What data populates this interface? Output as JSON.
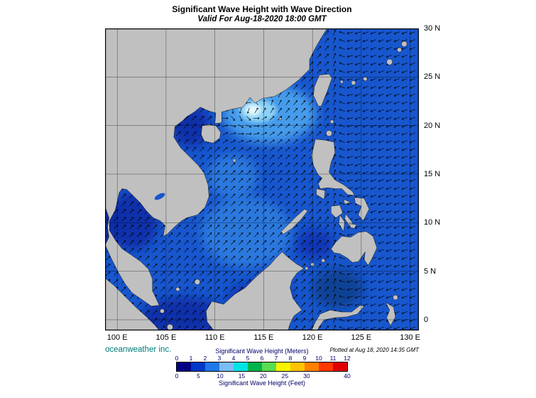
{
  "header": {
    "title": "Significant Wave Height with Wave Direction",
    "subtitle": "Valid For Aug-18-2020 18:00 GMT"
  },
  "footer": {
    "brand": "oceanweather inc.",
    "plotted": "Plotted at Aug 18, 2020 14:35 GMT"
  },
  "map": {
    "bounds": {
      "lon_min": 98.75,
      "lon_max": 130.9,
      "lat_min": -1.1,
      "lat_max": 30
    },
    "ocean_color": "#1756cd",
    "land_color": "#c0c0c0",
    "lon_ticks": [
      {
        "value": 100,
        "label": "100 E"
      },
      {
        "value": 105,
        "label": "105 E"
      },
      {
        "value": 110,
        "label": "110 E"
      },
      {
        "value": 115,
        "label": "115 E"
      },
      {
        "value": 120,
        "label": "120 E"
      },
      {
        "value": 125,
        "label": "125 E"
      },
      {
        "value": 130,
        "label": "130 E"
      }
    ],
    "lat_ticks": [
      {
        "value": 0,
        "label": "0"
      },
      {
        "value": 5,
        "label": "5 N"
      },
      {
        "value": 10,
        "label": "10 N"
      },
      {
        "value": 15,
        "label": "15 N"
      },
      {
        "value": 20,
        "label": "20 N"
      },
      {
        "value": 25,
        "label": "25 N"
      },
      {
        "value": 30,
        "label": "30 N"
      }
    ],
    "wave_field": {
      "vortex": {
        "lon": 113.9,
        "lat": 21.6
      },
      "scs_dir_deg": 45,
      "pacific_dir_deg": 200,
      "arrow_spacing_deg": 0.8
    },
    "regions": [
      {
        "name": "south-scs-moderate",
        "lon": 113.2,
        "lat": 9.0,
        "rx": 4.6,
        "ry": 3.6,
        "color": "#2e7ce0",
        "blur": "soft"
      },
      {
        "name": "central-scs-moderate",
        "lon": 111.8,
        "lat": 14.8,
        "rx": 2.6,
        "ry": 2.2,
        "color": "#2e7ce0",
        "blur": "soft"
      },
      {
        "name": "storm-halo",
        "lon": 115.6,
        "lat": 21.2,
        "rx": 4.8,
        "ry": 3.0,
        "color": "#4aa2ee",
        "blur": "soft"
      },
      {
        "name": "storm-inner",
        "lon": 114.4,
        "lat": 21.5,
        "rx": 1.9,
        "ry": 1.2,
        "color": "#90d6fa",
        "blur": "tight"
      },
      {
        "name": "storm-core",
        "lon": 113.9,
        "lat": 21.6,
        "rx": 0.8,
        "ry": 0.55,
        "color": "#ecfdff",
        "blur": "tight"
      },
      {
        "name": "gulf-of-tonkin-low",
        "lon": 107.5,
        "lat": 19.9,
        "rx": 2.0,
        "ry": 2.1,
        "color": "#0b2da6",
        "blur": "soft"
      },
      {
        "name": "gulf-of-thailand-low",
        "lon": 101.6,
        "lat": 10.2,
        "rx": 2.5,
        "ry": 3.0,
        "color": "#0b2da6",
        "blur": "soft"
      },
      {
        "name": "andaman-edge-low",
        "lon": 98.9,
        "lat": 10.0,
        "rx": 1.3,
        "ry": 2.4,
        "color": "#0b2da6",
        "blur": "soft"
      },
      {
        "name": "sunda-shelf-low",
        "lon": 106.8,
        "lat": 0.3,
        "rx": 4.4,
        "ry": 2.0,
        "color": "#0b2da6",
        "blur": "soft"
      },
      {
        "name": "nw-borneo-low",
        "lon": 114.6,
        "lat": 2.3,
        "rx": 3.4,
        "ry": 1.6,
        "color": "#0d33b2",
        "blur": "soft"
      },
      {
        "name": "sulu-sea-low",
        "lon": 120.2,
        "lat": 7.8,
        "rx": 2.0,
        "ry": 1.5,
        "color": "#0d33b2",
        "blur": "soft"
      },
      {
        "name": "celebes-sea-low",
        "lon": 122.6,
        "lat": 3.2,
        "rx": 2.6,
        "ry": 2.0,
        "color": "#104090",
        "blur": "soft"
      }
    ]
  },
  "legend": {
    "title_meters": "Significant Wave Height (Meters)",
    "title_feet": "Significant Wave Height (Feet)",
    "meter_ticks": [
      0,
      1,
      2,
      3,
      4,
      5,
      6,
      7,
      8,
      9,
      10,
      11,
      12
    ],
    "feet_ticks": [
      0,
      5,
      10,
      15,
      20,
      25,
      30,
      40
    ],
    "meters_per_foot": 0.3048,
    "colors": [
      "#000085",
      "#0038c8",
      "#1e78e8",
      "#7cbcf4",
      "#00e4e4",
      "#00b44c",
      "#58dc50",
      "#f8f400",
      "#ffc400",
      "#ff8000",
      "#ff3800",
      "#e00000"
    ]
  }
}
